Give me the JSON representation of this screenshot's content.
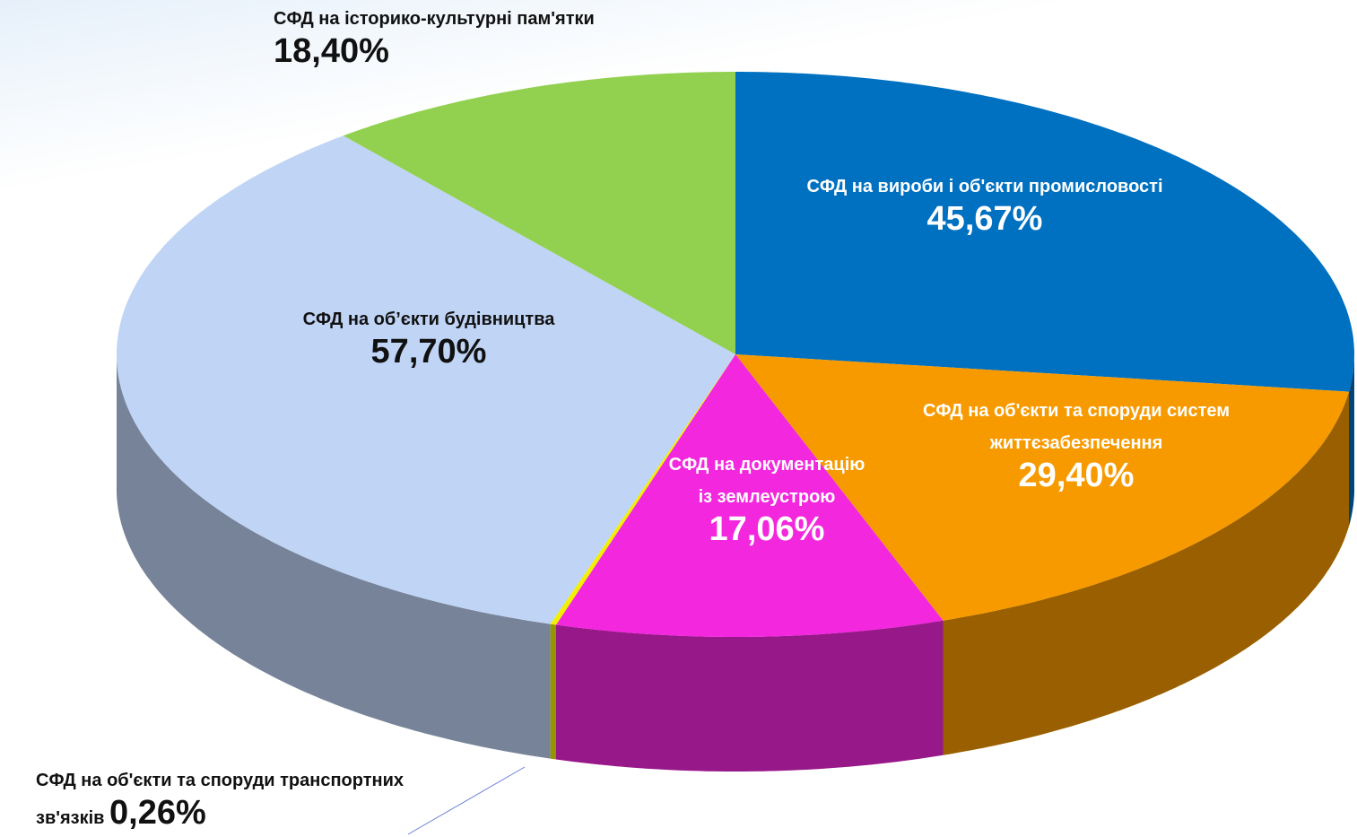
{
  "chart_data": {
    "type": "pie",
    "categories": [
      "СФД на вироби і об'єкти промисловості",
      "СФД на об'єкти та споруди систем життєзабезпечення",
      "СФД на документацію із землеустрою",
      "СФД на об'єкти та споруди транспортних зв'язків",
      "СФД на об’єкти будівництва",
      "СФД на історико-культурні пам'ятки"
    ],
    "values": [
      45.67,
      29.4,
      17.06,
      0.26,
      57.7,
      18.4
    ],
    "value_labels": [
      "45,67%",
      "29,40%",
      "17,06%",
      "0,26%",
      "57,70%",
      "18,40%"
    ],
    "colors": [
      "#0070c0",
      "#f79a00",
      "#f227de",
      "#f0f000",
      "#c0d4f5",
      "#92d050"
    ]
  }
}
